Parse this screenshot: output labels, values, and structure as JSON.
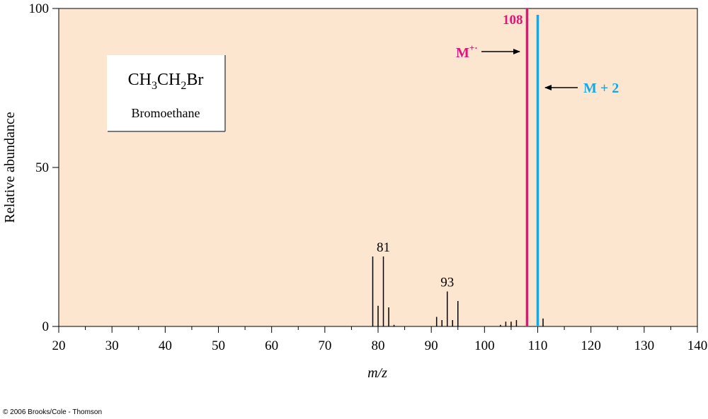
{
  "chart_data": {
    "type": "bar",
    "title": "",
    "xlabel": "m/z",
    "ylabel": "Relative abundance",
    "xlim": [
      20,
      140
    ],
    "ylim": [
      0,
      100
    ],
    "x_ticks": [
      20,
      30,
      40,
      50,
      60,
      70,
      80,
      90,
      100,
      110,
      120,
      130,
      140
    ],
    "y_ticks": [
      0,
      50,
      100
    ],
    "grid": false,
    "background_color": "#fde6d0",
    "peaks": [
      {
        "mz": 79,
        "abundance": 22
      },
      {
        "mz": 80,
        "abundance": 6.5
      },
      {
        "mz": 81,
        "abundance": 22
      },
      {
        "mz": 82,
        "abundance": 6
      },
      {
        "mz": 83,
        "abundance": 0.5
      },
      {
        "mz": 91,
        "abundance": 3
      },
      {
        "mz": 92,
        "abundance": 2
      },
      {
        "mz": 93,
        "abundance": 11
      },
      {
        "mz": 94,
        "abundance": 2
      },
      {
        "mz": 95,
        "abundance": 8
      },
      {
        "mz": 103,
        "abundance": 0.5
      },
      {
        "mz": 104,
        "abundance": 1.5
      },
      {
        "mz": 105,
        "abundance": 1.5
      },
      {
        "mz": 106,
        "abundance": 2
      },
      {
        "mz": 108,
        "abundance": 100,
        "highlight": "molecular_ion"
      },
      {
        "mz": 110,
        "abundance": 98,
        "highlight": "m_plus_2"
      },
      {
        "mz": 111,
        "abundance": 2.5
      }
    ],
    "peak_labels": [
      {
        "mz": 81,
        "text": "81"
      },
      {
        "mz": 93,
        "text": "93"
      },
      {
        "mz": 108,
        "text": "108"
      }
    ],
    "annotations": {
      "molecular_ion": {
        "text": "M",
        "superscript": "+·",
        "color": "#e0147a"
      },
      "m_plus_2": {
        "text": "M + 2",
        "color": "#1aa7e0"
      }
    },
    "compound_box": {
      "formula_parts": [
        "CH",
        "3",
        "CH",
        "2",
        "Br"
      ],
      "name": "Bromoethane"
    }
  },
  "copyright": "© 2006 Brooks/Cole - Thomson"
}
